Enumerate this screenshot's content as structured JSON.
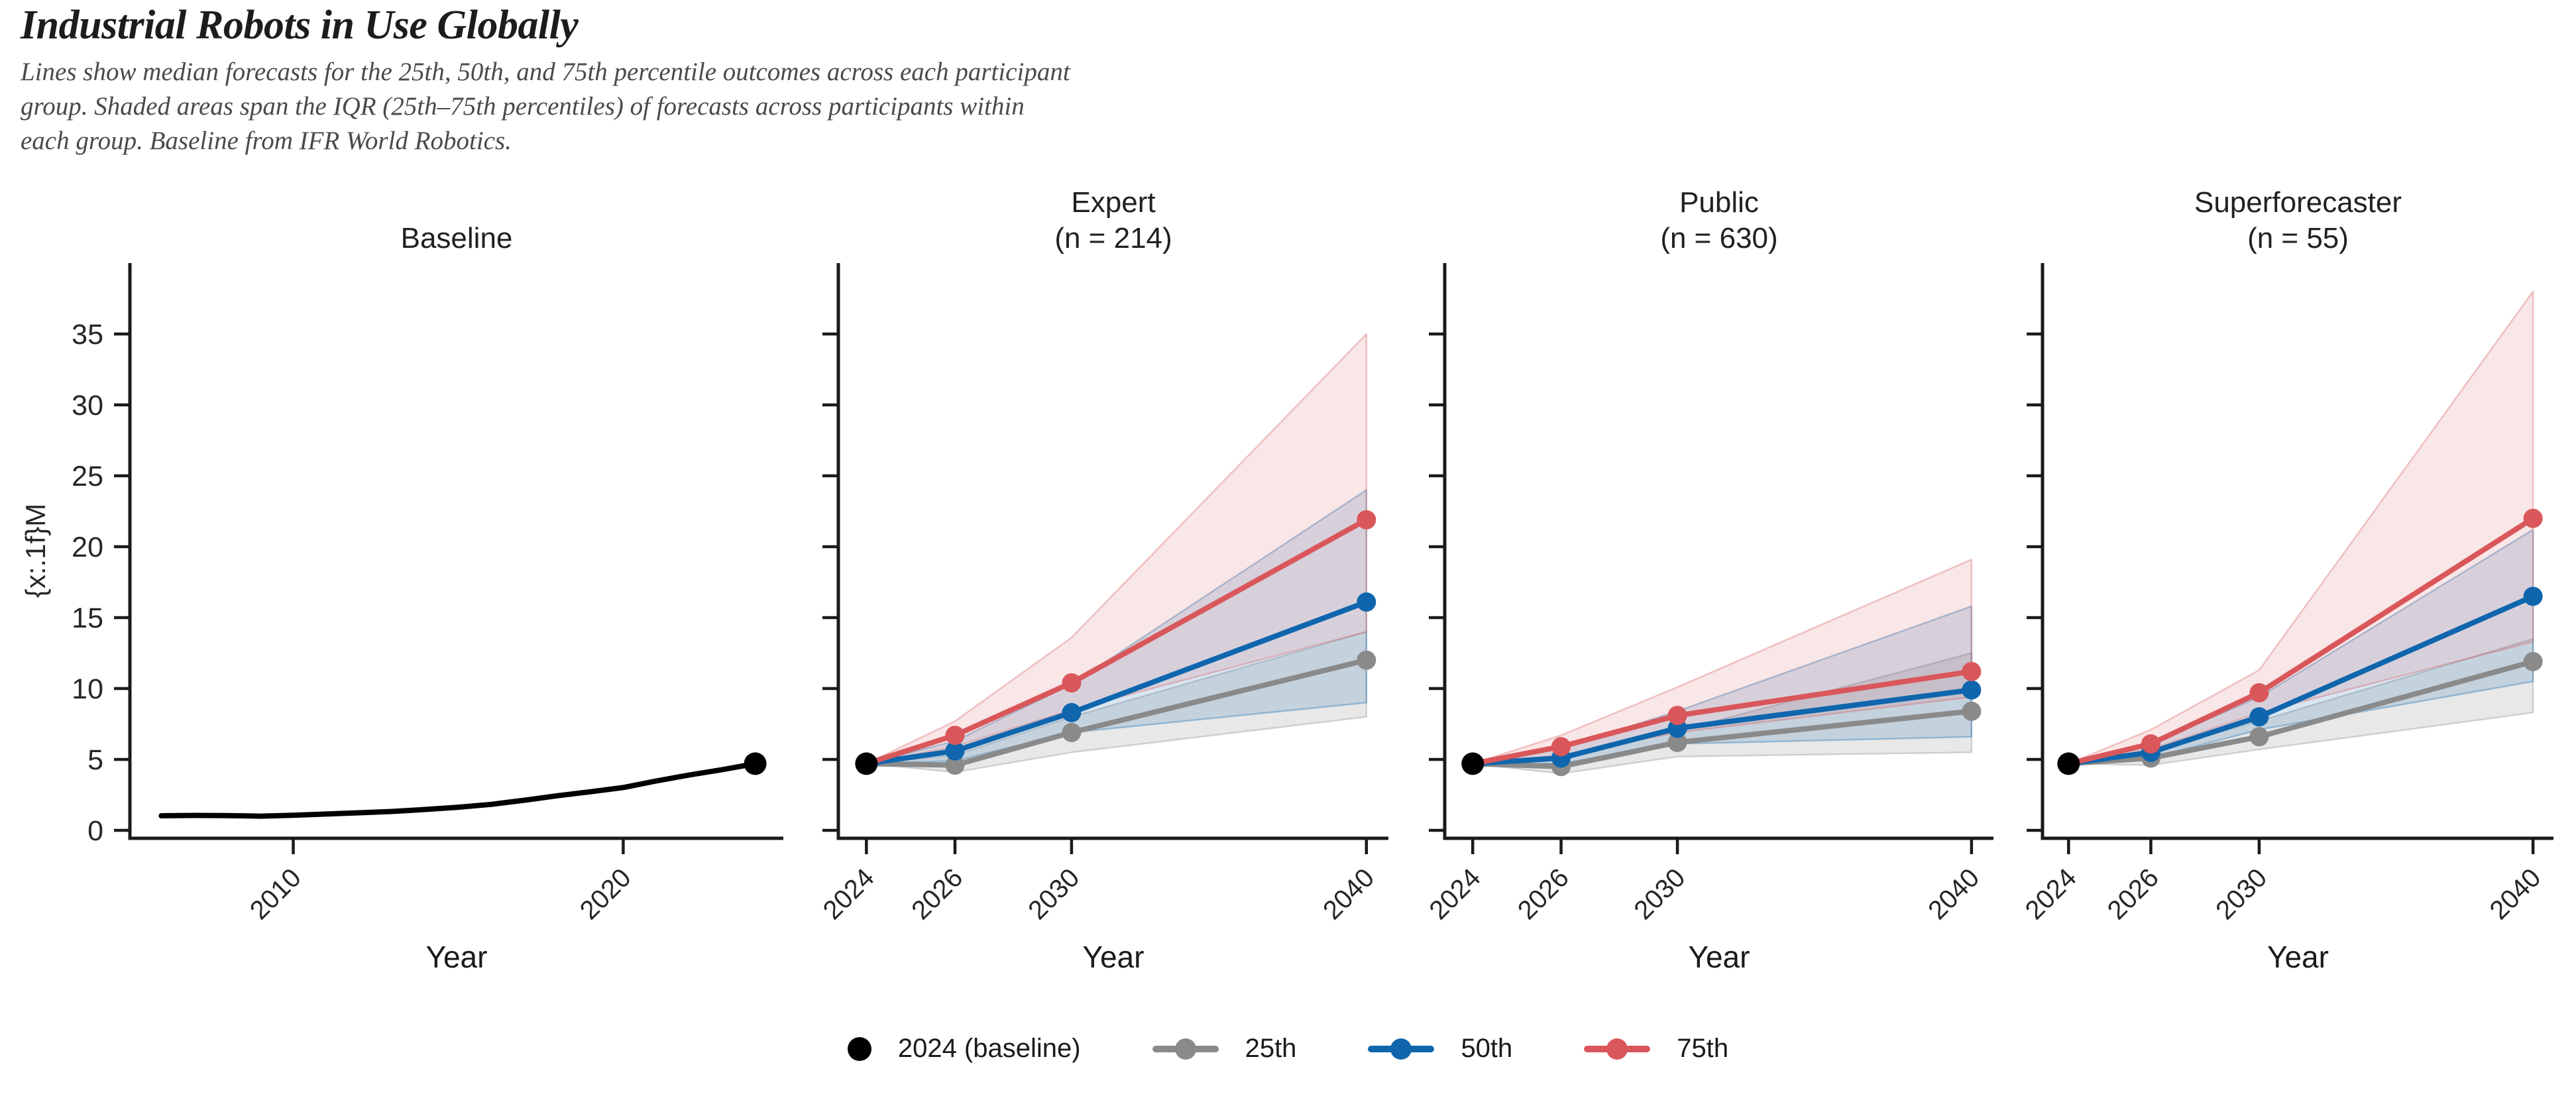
{
  "header": {
    "title": "Industrial Robots in Use Globally",
    "subtitle_lines": [
      "Lines show median forecasts for the 25th, 50th, and 75th percentile outcomes across each participant",
      "group. Shaded areas span the IQR (25th–75th percentiles) of forecasts across participants within",
      "each group. Baseline from IFR World Robotics."
    ]
  },
  "axes": {
    "ylabel": "{x:.1f}M",
    "xlabel": "Year",
    "y_ticks": [
      0,
      5,
      10,
      15,
      20,
      25,
      30,
      35
    ]
  },
  "colors": {
    "baseline": "#000000",
    "p25": "#8a8a8a",
    "p50": "#0f66ad",
    "p75": "#d9575a",
    "ink": "#1a1a1a",
    "subtitle": "#4a4a4a"
  },
  "legend": {
    "items": [
      {
        "label": "2024 (baseline)",
        "color": "#000000",
        "marker": "dot"
      },
      {
        "label": "25th",
        "color": "#8a8a8a",
        "marker": "line-dot"
      },
      {
        "label": "50th",
        "color": "#0f66ad",
        "marker": "line-dot"
      },
      {
        "label": "75th",
        "color": "#d9575a",
        "marker": "line-dot"
      }
    ]
  },
  "chart_data": [
    {
      "type": "line",
      "title": "Baseline",
      "xlabel": "Year",
      "ylabel": "{x:.1f}M",
      "x_ticks": [
        2010,
        2020
      ],
      "y_ticks": [
        0,
        5,
        10,
        15,
        20,
        25,
        30,
        35
      ],
      "xlim": [
        2005,
        2025
      ],
      "ylim": [
        0,
        40
      ],
      "grid": false,
      "series": [
        {
          "name": "baseline",
          "color": "#000000",
          "x": [
            2006,
            2007,
            2008,
            2009,
            2010,
            2011,
            2012,
            2013,
            2014,
            2015,
            2016,
            2017,
            2018,
            2019,
            2020,
            2021,
            2022,
            2023,
            2024
          ],
          "y": [
            1.03,
            1.05,
            1.04,
            1.0,
            1.06,
            1.15,
            1.24,
            1.33,
            1.47,
            1.63,
            1.83,
            2.12,
            2.44,
            2.72,
            3.02,
            3.48,
            3.9,
            4.28,
            4.7
          ]
        }
      ],
      "end_marker": {
        "x": 2024,
        "y": 4.7
      }
    },
    {
      "type": "line-band",
      "title": "Expert",
      "subtitle": "(n = 214)",
      "xlabel": "Year",
      "x_ticks": [
        "2024",
        "2026",
        "2030",
        "2040"
      ],
      "y_ticks": [
        0,
        5,
        10,
        15,
        20,
        25,
        30,
        35
      ],
      "ylim": [
        0,
        40
      ],
      "baseline_2024": 4.7,
      "series": [
        {
          "name": "25th",
          "color": "#8a8a8a",
          "values": [
            4.7,
            4.6,
            6.9,
            12.0
          ],
          "band_lo": [
            4.7,
            4.1,
            5.5,
            8.0
          ],
          "band_hi": [
            4.7,
            5.3,
            8.0,
            14.0
          ]
        },
        {
          "name": "50th",
          "color": "#0f66ad",
          "values": [
            4.7,
            5.6,
            8.3,
            16.1
          ],
          "band_lo": [
            4.7,
            4.9,
            6.9,
            9.0
          ],
          "band_hi": [
            4.7,
            6.3,
            10.3,
            24.0
          ]
        },
        {
          "name": "75th",
          "color": "#d9575a",
          "values": [
            4.7,
            6.7,
            10.4,
            21.9
          ],
          "band_lo": [
            4.7,
            5.9,
            8.5,
            14.0
          ],
          "band_hi": [
            4.7,
            7.7,
            13.6,
            35.0
          ]
        }
      ]
    },
    {
      "type": "line-band",
      "title": "Public",
      "subtitle": "(n = 630)",
      "xlabel": "Year",
      "x_ticks": [
        "2024",
        "2026",
        "2030",
        "2040"
      ],
      "y_ticks": [
        0,
        5,
        10,
        15,
        20,
        25,
        30,
        35
      ],
      "ylim": [
        0,
        40
      ],
      "baseline_2024": 4.7,
      "series": [
        {
          "name": "25th",
          "color": "#8a8a8a",
          "values": [
            4.7,
            4.5,
            6.2,
            8.4
          ],
          "band_lo": [
            4.7,
            4.0,
            5.2,
            5.5
          ],
          "band_hi": [
            4.7,
            5.1,
            7.0,
            12.5
          ]
        },
        {
          "name": "50th",
          "color": "#0f66ad",
          "values": [
            4.7,
            5.1,
            7.2,
            9.9
          ],
          "band_lo": [
            4.7,
            4.7,
            6.1,
            6.6
          ],
          "band_hi": [
            4.7,
            5.8,
            8.4,
            15.8
          ]
        },
        {
          "name": "75th",
          "color": "#d9575a",
          "values": [
            4.7,
            5.9,
            8.1,
            11.2
          ],
          "band_lo": [
            4.7,
            5.3,
            6.9,
            9.4
          ],
          "band_hi": [
            4.7,
            6.7,
            10.1,
            19.1
          ]
        }
      ]
    },
    {
      "type": "line-band",
      "title": "Superforecaster",
      "subtitle": "(n = 55)",
      "xlabel": "Year",
      "x_ticks": [
        "2024",
        "2026",
        "2030",
        "2040"
      ],
      "y_ticks": [
        0,
        5,
        10,
        15,
        20,
        25,
        30,
        35
      ],
      "ylim": [
        0,
        40
      ],
      "baseline_2024": 4.7,
      "series": [
        {
          "name": "25th",
          "color": "#8a8a8a",
          "values": [
            4.7,
            5.1,
            6.6,
            11.9
          ],
          "band_lo": [
            4.7,
            4.6,
            5.7,
            8.3
          ],
          "band_hi": [
            4.7,
            5.6,
            7.7,
            13.5
          ]
        },
        {
          "name": "50th",
          "color": "#0f66ad",
          "values": [
            4.7,
            5.5,
            8.0,
            16.5
          ],
          "band_lo": [
            4.7,
            5.1,
            7.1,
            10.5
          ],
          "band_hi": [
            4.7,
            6.1,
            9.4,
            21.2
          ]
        },
        {
          "name": "75th",
          "color": "#d9575a",
          "values": [
            4.7,
            6.1,
            9.7,
            22.0
          ],
          "band_lo": [
            4.7,
            5.7,
            8.3,
            13.3
          ],
          "band_hi": [
            4.7,
            7.1,
            11.3,
            38.0
          ]
        }
      ]
    }
  ]
}
